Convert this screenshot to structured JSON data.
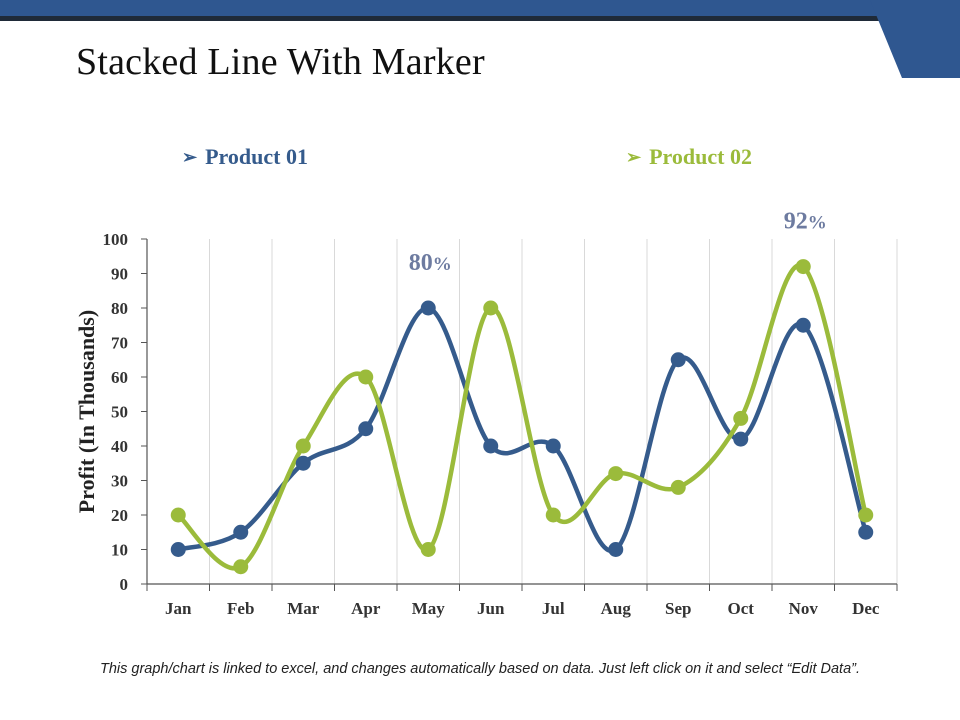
{
  "colors": {
    "brand_blue": "#2f5790",
    "series1": "#355b8c",
    "series2": "#9bbb3b",
    "callout": "#6d7ba0",
    "grid": "#d9d9d9",
    "axis": "#555555"
  },
  "slide": {
    "title": "Stacked Line With Marker",
    "footer_note": "This graph/chart is linked to excel, and changes automatically based on data. Just left click on it and select “Edit Data”."
  },
  "legend": {
    "arrow_icon": "➢",
    "items": [
      {
        "label": "Product 01"
      },
      {
        "label": "Product 02"
      }
    ]
  },
  "chart_data": {
    "type": "line",
    "title": "",
    "xlabel": "",
    "ylabel": "Profit (In Thousands)",
    "ylim": [
      0,
      100
    ],
    "yticks": [
      0,
      10,
      20,
      30,
      40,
      50,
      60,
      70,
      80,
      90,
      100
    ],
    "grid": "vertical",
    "smooth": true,
    "markers": true,
    "categories": [
      "Jan",
      "Feb",
      "Mar",
      "Apr",
      "May",
      "Jun",
      "Jul",
      "Aug",
      "Sep",
      "Oct",
      "Nov",
      "Dec"
    ],
    "series": [
      {
        "name": "Product 01",
        "values": [
          10,
          15,
          35,
          45,
          80,
          40,
          40,
          10,
          65,
          42,
          75,
          15
        ]
      },
      {
        "name": "Product 02",
        "values": [
          20,
          5,
          40,
          60,
          10,
          80,
          20,
          32,
          28,
          48,
          92,
          20
        ]
      }
    ],
    "annotations": [
      {
        "category": "May",
        "value": 80,
        "number": "80",
        "suffix": "%"
      },
      {
        "category": "Nov",
        "value": 92,
        "number": "92",
        "suffix": "%"
      }
    ]
  }
}
